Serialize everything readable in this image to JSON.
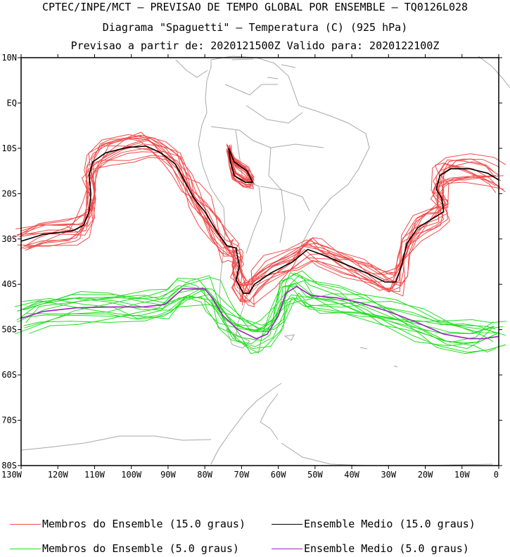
{
  "header": {
    "line1": "CPTEC/INPE/MCT – PREVISAO DE TEMPO GLOBAL POR ENSEMBLE – TQ0126L028",
    "line2": "Diagrama \"Spaguetti\" – Temperatura (C) (925 hPa)",
    "line3": "Previsao a partir de: 2020121500Z  Valido para: 2020122100Z"
  },
  "axes": {
    "lat_labels": [
      "10N",
      "EQ",
      "10S",
      "20S",
      "30S",
      "40S",
      "50S",
      "60S",
      "70S",
      "80S"
    ],
    "lat_values": [
      10,
      0,
      -10,
      -20,
      -30,
      -40,
      -50,
      -60,
      -70,
      -80
    ],
    "lon_labels": [
      "130W",
      "120W",
      "110W",
      "100W",
      "90W",
      "80W",
      "70W",
      "60W",
      "50W",
      "40W",
      "30W",
      "20W",
      "10W",
      "0"
    ],
    "lon_values": [
      -130,
      -120,
      -110,
      -100,
      -90,
      -80,
      -70,
      -60,
      -50,
      -40,
      -30,
      -20,
      -10,
      0
    ],
    "lon_range": [
      -130,
      0
    ],
    "lat_range": [
      -80,
      10
    ]
  },
  "colors": {
    "members_15": "#f04a4a",
    "mean_15": "#000000",
    "members_5": "#22dd22",
    "mean_5": "#a020c0",
    "land": "#a8a8a8"
  },
  "legend": {
    "members_15_label": "Membros do Ensemble (15.0 graus)",
    "mean_15_label": "Ensemble Medio (15.0 graus)",
    "members_5_label": "Membros do Ensemble (5.0 graus)",
    "mean_5_label": "Ensemble Medio (5.0 graus)"
  },
  "contours": {
    "mean_15": [
      [
        -130,
        -30.5
      ],
      [
        -124,
        -29
      ],
      [
        -116,
        -28.2
      ],
      [
        -113,
        -27
      ],
      [
        -111.5,
        -24
      ],
      [
        -111,
        -20
      ],
      [
        -111.5,
        -16
      ],
      [
        -110.5,
        -13
      ],
      [
        -107,
        -11
      ],
      [
        -101,
        -9.8
      ],
      [
        -96,
        -9.5
      ],
      [
        -92,
        -11
      ],
      [
        -88,
        -13.5
      ],
      [
        -85,
        -18
      ],
      [
        -83,
        -21
      ],
      [
        -80,
        -24
      ],
      [
        -77,
        -28
      ],
      [
        -74,
        -31.5
      ],
      [
        -71.5,
        -32
      ],
      [
        -71.2,
        -33.5
      ],
      [
        -70.6,
        -36
      ],
      [
        -71.5,
        -39
      ],
      [
        -69.5,
        -42
      ],
      [
        -68,
        -42
      ],
      [
        -66.5,
        -40
      ],
      [
        -62,
        -37.5
      ],
      [
        -56,
        -35
      ],
      [
        -52,
        -32.3
      ],
      [
        -48,
        -33.5
      ],
      [
        -42,
        -35.5
      ],
      [
        -36,
        -37.5
      ],
      [
        -31,
        -39.5
      ],
      [
        -28,
        -39.5
      ],
      [
        -26.5,
        -36
      ],
      [
        -25,
        -31
      ],
      [
        -22,
        -27.5
      ],
      [
        -18,
        -25.5
      ],
      [
        -15,
        -24
      ],
      [
        -15.5,
        -21
      ],
      [
        -17,
        -19
      ],
      [
        -16,
        -16
      ],
      [
        -13,
        -14.5
      ],
      [
        -8,
        -14.5
      ],
      [
        -3,
        -15.5
      ],
      [
        0,
        -17
      ]
    ],
    "mean_15_inland": [
      [
        -73.5,
        -10
      ],
      [
        -72,
        -13
      ],
      [
        -68.5,
        -15
      ],
      [
        -67,
        -17.5
      ],
      [
        -69,
        -17.5
      ],
      [
        -72,
        -16
      ],
      [
        -73,
        -13
      ],
      [
        -73.5,
        -10
      ]
    ],
    "mean_5": [
      [
        -130,
        -47.5
      ],
      [
        -124,
        -46
      ],
      [
        -115,
        -45.2
      ],
      [
        -105,
        -45
      ],
      [
        -97,
        -45
      ],
      [
        -91,
        -44.5
      ],
      [
        -86,
        -41
      ],
      [
        -80,
        -41
      ],
      [
        -78,
        -43
      ],
      [
        -75,
        -47
      ],
      [
        -71,
        -50
      ],
      [
        -66,
        -52
      ],
      [
        -63,
        -51
      ],
      [
        -60,
        -47
      ],
      [
        -58,
        -42
      ],
      [
        -55,
        -40.5
      ],
      [
        -51,
        -42.5
      ],
      [
        -44,
        -43
      ],
      [
        -38,
        -44
      ],
      [
        -30,
        -46
      ],
      [
        -22,
        -48.5
      ],
      [
        -15,
        -51
      ],
      [
        -8,
        -52
      ],
      [
        -4,
        -52
      ],
      [
        0,
        -51.5
      ]
    ],
    "members_15": [
      {
        "seed": 1,
        "amp": 2.2
      },
      {
        "seed": 2,
        "amp": 2.8
      },
      {
        "seed": 3,
        "amp": 1.8
      },
      {
        "seed": 4,
        "amp": 3.2
      },
      {
        "seed": 5,
        "amp": 2.5
      },
      {
        "seed": 6,
        "amp": 2.0
      },
      {
        "seed": 7,
        "amp": 3.0
      },
      {
        "seed": 8,
        "amp": 1.6
      },
      {
        "seed": 9,
        "amp": 2.6
      },
      {
        "seed": 10,
        "amp": 2.3
      },
      {
        "seed": 11,
        "amp": 3.4
      },
      {
        "seed": 12,
        "amp": 1.9
      },
      {
        "seed": 13,
        "amp": 2.7
      },
      {
        "seed": 14,
        "amp": 2.1
      },
      {
        "seed": 15,
        "amp": 2.9
      }
    ],
    "members_5": [
      {
        "seed": 21,
        "amp": 2.6
      },
      {
        "seed": 22,
        "amp": 3.2
      },
      {
        "seed": 23,
        "amp": 2.2
      },
      {
        "seed": 24,
        "amp": 3.6
      },
      {
        "seed": 25,
        "amp": 2.9
      },
      {
        "seed": 26,
        "amp": 2.4
      },
      {
        "seed": 27,
        "amp": 3.4
      },
      {
        "seed": 28,
        "amp": 2.0
      },
      {
        "seed": 29,
        "amp": 3.0
      },
      {
        "seed": 30,
        "amp": 2.7
      },
      {
        "seed": 31,
        "amp": 3.8
      },
      {
        "seed": 32,
        "amp": 2.3
      },
      {
        "seed": 33,
        "amp": 3.1
      },
      {
        "seed": 34,
        "amp": 2.5
      },
      {
        "seed": 35,
        "amp": 3.3
      }
    ]
  }
}
